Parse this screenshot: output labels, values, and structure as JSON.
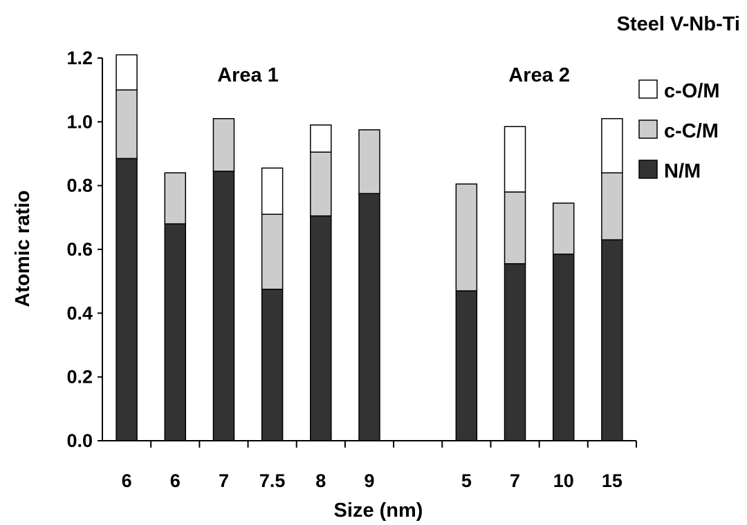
{
  "chart_data": {
    "type": "bar",
    "stacked": true,
    "title": "Steel V-Nb-Ti",
    "xlabel": "Size (nm)",
    "ylabel": "Atomic ratio",
    "ylim": [
      0,
      1.2
    ],
    "yticks": [
      "0.0",
      "0.2",
      "0.4",
      "0.6",
      "0.8",
      "1.0",
      "1.2"
    ],
    "grid": false,
    "legend_position": "right",
    "groups": [
      {
        "label": "Area 1",
        "slots": [
          0,
          5
        ]
      },
      {
        "label": "Area 2",
        "slots": [
          7,
          10
        ]
      }
    ],
    "slot_count": 11,
    "categories": [
      {
        "label": "6",
        "slot": 0
      },
      {
        "label": "6",
        "slot": 1
      },
      {
        "label": "7",
        "slot": 2
      },
      {
        "label": "7.5",
        "slot": 3
      },
      {
        "label": "8",
        "slot": 4
      },
      {
        "label": "9",
        "slot": 5
      },
      {
        "label": "5",
        "slot": 7
      },
      {
        "label": "7",
        "slot": 8
      },
      {
        "label": "10",
        "slot": 9
      },
      {
        "label": "15",
        "slot": 10
      }
    ],
    "series": [
      {
        "name": "N/M",
        "color": "#333333",
        "values": [
          0.885,
          0.68,
          0.845,
          0.475,
          0.705,
          0.775,
          0.47,
          0.555,
          0.585,
          0.63
        ]
      },
      {
        "name": "c-C/M",
        "color": "#cccccc",
        "values": [
          0.215,
          0.16,
          0.165,
          0.235,
          0.2,
          0.2,
          0.335,
          0.225,
          0.16,
          0.21
        ]
      },
      {
        "name": "c-O/M",
        "color": "#ffffff",
        "values": [
          0.11,
          0.0,
          0.0,
          0.145,
          0.085,
          0.0,
          0.0,
          0.205,
          0.0,
          0.17
        ]
      }
    ],
    "legend_order": [
      "c-O/M",
      "c-C/M",
      "N/M"
    ]
  }
}
